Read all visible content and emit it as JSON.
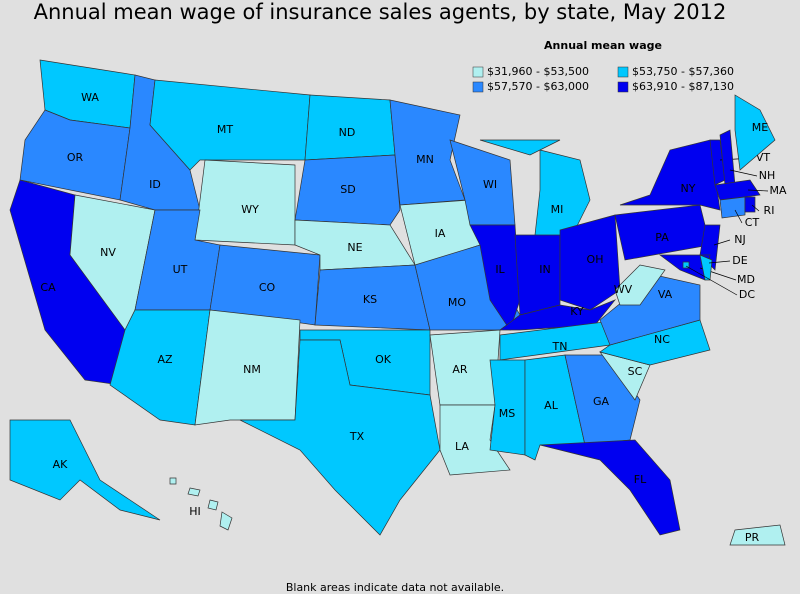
{
  "title": "Annual mean wage of insurance sales agents, by state, May 2012",
  "legend": {
    "title": "Annual mean wage",
    "items": [
      {
        "label": "$31,960 - $53,500",
        "color": "#b0f0f0"
      },
      {
        "label": "$53,750 - $57,360",
        "color": "#00c8ff"
      },
      {
        "label": "$57,570 - $63,000",
        "color": "#2a88ff"
      },
      {
        "label": "$63,910 - $87,130",
        "color": "#0000f0"
      }
    ]
  },
  "states": [
    {
      "label": "WA",
      "bin": 1
    },
    {
      "label": "OR",
      "bin": 2
    },
    {
      "label": "CA",
      "bin": 3
    },
    {
      "label": "NV",
      "bin": 0
    },
    {
      "label": "ID",
      "bin": 2
    },
    {
      "label": "MT",
      "bin": 1
    },
    {
      "label": "WY",
      "bin": 0
    },
    {
      "label": "UT",
      "bin": 2
    },
    {
      "label": "CO",
      "bin": 2
    },
    {
      "label": "AZ",
      "bin": 1
    },
    {
      "label": "NM",
      "bin": 0
    },
    {
      "label": "ND",
      "bin": 1
    },
    {
      "label": "SD",
      "bin": 2
    },
    {
      "label": "NE",
      "bin": 0
    },
    {
      "label": "KS",
      "bin": 2
    },
    {
      "label": "OK",
      "bin": 1
    },
    {
      "label": "TX",
      "bin": 1
    },
    {
      "label": "MN",
      "bin": 2
    },
    {
      "label": "IA",
      "bin": 0
    },
    {
      "label": "MO",
      "bin": 2
    },
    {
      "label": "AR",
      "bin": 0
    },
    {
      "label": "LA",
      "bin": 0
    },
    {
      "label": "WI",
      "bin": 2
    },
    {
      "label": "IL",
      "bin": 3
    },
    {
      "label": "MI",
      "bin": 1
    },
    {
      "label": "IN",
      "bin": 3
    },
    {
      "label": "OH",
      "bin": 3
    },
    {
      "label": "KY",
      "bin": 3
    },
    {
      "label": "TN",
      "bin": 1
    },
    {
      "label": "MS",
      "bin": 1
    },
    {
      "label": "AL",
      "bin": 1
    },
    {
      "label": "GA",
      "bin": 2
    },
    {
      "label": "FL",
      "bin": 3
    },
    {
      "label": "SC",
      "bin": 0
    },
    {
      "label": "NC",
      "bin": 1
    },
    {
      "label": "VA",
      "bin": 2
    },
    {
      "label": "WV",
      "bin": 0
    },
    {
      "label": "PA",
      "bin": 3
    },
    {
      "label": "NY",
      "bin": 3
    },
    {
      "label": "VT",
      "bin": 3
    },
    {
      "label": "NH",
      "bin": 3
    },
    {
      "label": "ME",
      "bin": 1
    },
    {
      "label": "MA",
      "bin": 3
    },
    {
      "label": "CT",
      "bin": 2
    },
    {
      "label": "RI",
      "bin": 3
    },
    {
      "label": "NJ",
      "bin": 3
    },
    {
      "label": "MD",
      "bin": 3
    },
    {
      "label": "DE",
      "bin": 1
    },
    {
      "label": "DC",
      "bin": 1
    },
    {
      "label": "AK",
      "bin": 1
    },
    {
      "label": "HI",
      "bin": 0
    },
    {
      "label": "PR",
      "bin": 0
    }
  ],
  "footnote": "Blank areas indicate data not available."
}
